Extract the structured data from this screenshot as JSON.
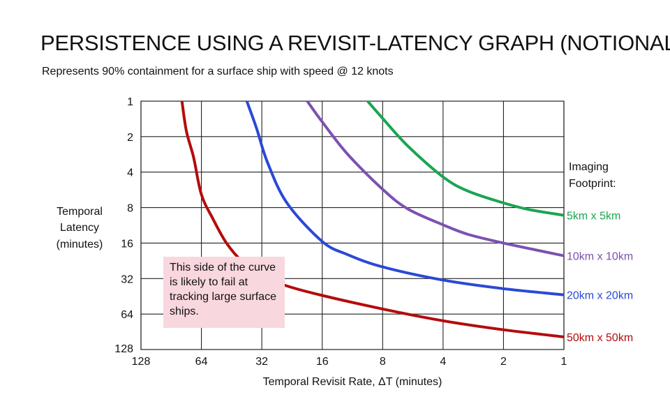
{
  "title": "PERSISTENCE USING A REVISIT-LATENCY GRAPH (NOTIONAL)",
  "subtitle": "Represents 90% containment for a surface ship with speed @ 12 knots",
  "note": "This side of the curve is likely to fail at tracking large surface ships.",
  "chart_data": {
    "type": "line",
    "title": "PERSISTENCE USING A REVISIT-LATENCY GRAPH (NOTIONAL)",
    "xlabel": "Temporal Revisit Rate, ΔT (minutes)",
    "ylabel": [
      "Temporal",
      "Latency",
      "(minutes)"
    ],
    "x_scale": "log2-reversed",
    "y_scale": "log2-inverted",
    "xlim": [
      128,
      1
    ],
    "ylim": [
      1,
      128
    ],
    "x_ticks": [
      128,
      64,
      32,
      16,
      8,
      4,
      2,
      1
    ],
    "y_ticks": [
      1,
      2,
      4,
      8,
      16,
      32,
      64,
      128
    ],
    "grid": true,
    "legend_title": [
      "Imaging",
      "Footprint:"
    ],
    "legend_placement": "right, at curve ends",
    "series": [
      {
        "name": "5km x 5km",
        "color": "#1aa552",
        "points": [
          [
            9.5,
            1
          ],
          [
            8,
            1.4
          ],
          [
            6,
            2.4
          ],
          [
            4,
            4.4
          ],
          [
            3,
            5.8
          ],
          [
            2,
            7.3
          ],
          [
            1.5,
            8.3
          ],
          [
            1,
            9.3
          ]
        ]
      },
      {
        "name": "10km x 10km",
        "color": "#7c51b1",
        "points": [
          [
            19,
            1
          ],
          [
            16,
            1.5
          ],
          [
            12,
            2.8
          ],
          [
            8,
            5.6
          ],
          [
            6,
            8.2
          ],
          [
            4,
            11.2
          ],
          [
            3,
            13.5
          ],
          [
            2,
            16
          ],
          [
            1,
            20.5
          ]
        ]
      },
      {
        "name": "20km x 20km",
        "color": "#2b49d6",
        "points": [
          [
            38,
            1
          ],
          [
            34,
            1.7
          ],
          [
            30,
            3.3
          ],
          [
            24,
            7.3
          ],
          [
            16,
            15.5
          ],
          [
            12,
            20
          ],
          [
            8,
            25.5
          ],
          [
            4,
            33
          ],
          [
            2,
            39
          ],
          [
            1,
            44
          ]
        ]
      },
      {
        "name": "50km x 50km",
        "color": "#b40c0c",
        "points": [
          [
            80,
            1
          ],
          [
            76,
            1.8
          ],
          [
            70,
            3
          ],
          [
            64,
            6.2
          ],
          [
            56,
            10
          ],
          [
            48,
            16
          ],
          [
            40,
            23
          ],
          [
            32,
            30.5
          ],
          [
            24,
            37
          ],
          [
            16,
            44.5
          ],
          [
            8,
            58
          ],
          [
            4,
            73
          ],
          [
            2,
            87
          ],
          [
            1,
            100
          ]
        ]
      }
    ]
  }
}
